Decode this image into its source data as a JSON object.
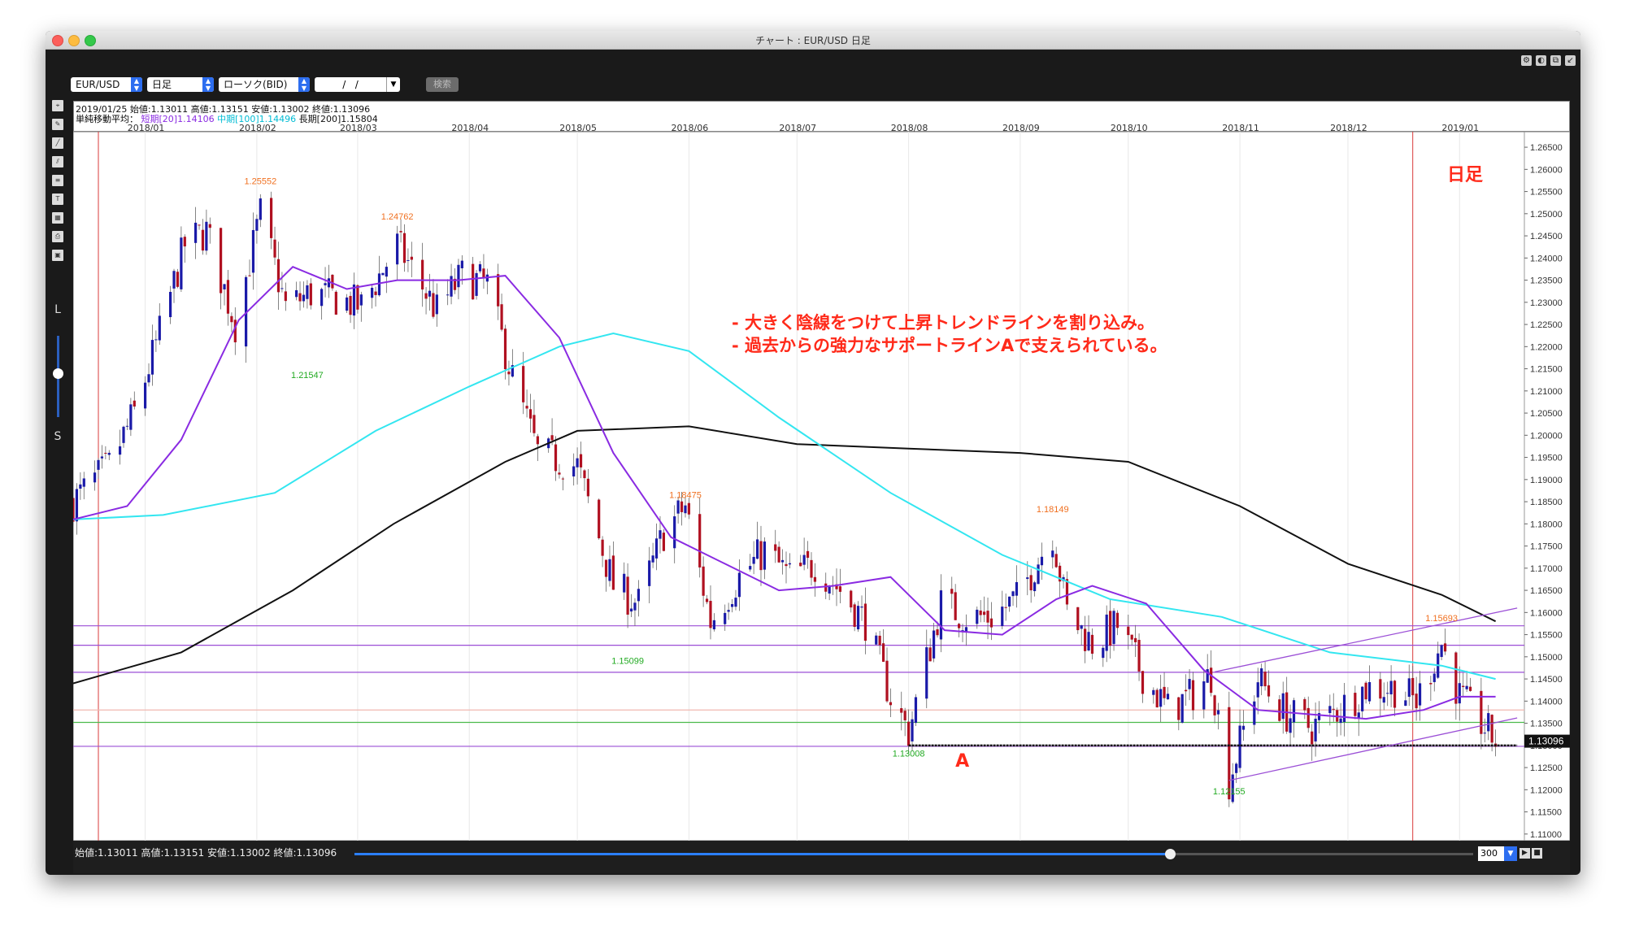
{
  "window": {
    "title": "チャート : EUR/USD 日足"
  },
  "toolbar": {
    "pair": "EUR/USD",
    "period": "日足",
    "candle_type": "ローソク(BID)",
    "date_value": "/   /",
    "search_label": "検索",
    "icons": [
      "gear-icon",
      "palette-icon",
      "popout-icon",
      "collapse-icon"
    ]
  },
  "left_tools": {
    "icons": [
      "cursor-icon",
      "pen-icon",
      "trendline-icon",
      "channel-icon",
      "fibonacci-icon",
      "text-icon",
      "grid-icon",
      "print-icon",
      "save-icon"
    ],
    "slider_top_label": "L",
    "slider_bottom_label": "S"
  },
  "info": {
    "ohlc_line": "2019/01/25 始値:1.13011 高値:1.13151 安値:1.13002 終値:1.13096",
    "ma_label": "単純移動平均：",
    "ma_short": "短期[20]1.14106",
    "ma_mid": "中期[100]1.14496",
    "ma_long": "長期[200]1.15804"
  },
  "status": {
    "ohlc_text": "始値:1.13011 高値:1.13151 安値:1.13002 終値:1.13096",
    "bars_value": "300",
    "zoom_level": 0.73
  },
  "colors": {
    "up": "#1a1aa8",
    "down": "#b01020",
    "ma_short": "#8a2be2",
    "ma_mid": "#33e6f0",
    "ma_long": "#111111",
    "annotation": "#ff2a1a"
  },
  "chart_data": {
    "type": "candlestick",
    "period_label": "日足",
    "x_axis_labels": [
      "2018/01",
      "2018/02",
      "2018/03",
      "2018/04",
      "2018/05",
      "2018/06",
      "2018/07",
      "2018/08",
      "2018/09",
      "2018/10",
      "2018/11",
      "2018/12",
      "2019/01"
    ],
    "y_ticks": [
      "1.26500",
      "1.26000",
      "1.25500",
      "1.25000",
      "1.24500",
      "1.24000",
      "1.23500",
      "1.23000",
      "1.22500",
      "1.22000",
      "1.21500",
      "1.21000",
      "1.20500",
      "1.20000",
      "1.19500",
      "1.19000",
      "1.18500",
      "1.18000",
      "1.17500",
      "1.17000",
      "1.16500",
      "1.16000",
      "1.15500",
      "1.15000",
      "1.14500",
      "1.14000",
      "1.13500",
      "1.13000",
      "1.12500",
      "1.12000",
      "1.11500",
      "1.11000"
    ],
    "ylim": [
      1.1085,
      1.2685
    ],
    "current_price": "1.13096",
    "close_path": [
      {
        "d": "2017-12-26",
        "v": 1.185
      },
      {
        "d": "2018-01-05",
        "v": 1.193
      },
      {
        "d": "2018-01-12",
        "v": 1.205
      },
      {
        "d": "2018-01-19",
        "v": 1.223
      },
      {
        "d": "2018-01-26",
        "v": 1.243
      },
      {
        "d": "2018-02-01",
        "v": 1.246
      },
      {
        "d": "2018-02-09",
        "v": 1.225
      },
      {
        "d": "2018-02-16",
        "v": 1.25
      },
      {
        "d": "2018-02-23",
        "v": 1.229
      },
      {
        "d": "2018-03-02",
        "v": 1.232
      },
      {
        "d": "2018-03-09",
        "v": 1.231
      },
      {
        "d": "2018-03-16",
        "v": 1.229
      },
      {
        "d": "2018-03-26",
        "v": 1.243
      },
      {
        "d": "2018-04-06",
        "v": 1.228
      },
      {
        "d": "2018-04-13",
        "v": 1.236
      },
      {
        "d": "2018-04-20",
        "v": 1.234
      },
      {
        "d": "2018-04-27",
        "v": 1.213
      },
      {
        "d": "2018-05-04",
        "v": 1.196
      },
      {
        "d": "2018-05-15",
        "v": 1.193
      },
      {
        "d": "2018-05-25",
        "v": 1.166
      },
      {
        "d": "2018-06-01",
        "v": 1.162
      },
      {
        "d": "2018-06-08",
        "v": 1.178
      },
      {
        "d": "2018-06-14",
        "v": 1.184
      },
      {
        "d": "2018-06-21",
        "v": 1.158
      },
      {
        "d": "2018-06-29",
        "v": 1.168
      },
      {
        "d": "2018-07-06",
        "v": 1.174
      },
      {
        "d": "2018-07-13",
        "v": 1.168
      },
      {
        "d": "2018-07-20",
        "v": 1.171
      },
      {
        "d": "2018-07-27",
        "v": 1.165
      },
      {
        "d": "2018-08-03",
        "v": 1.158
      },
      {
        "d": "2018-08-10",
        "v": 1.141
      },
      {
        "d": "2018-08-15",
        "v": 1.133
      },
      {
        "d": "2018-08-24",
        "v": 1.162
      },
      {
        "d": "2018-08-31",
        "v": 1.159
      },
      {
        "d": "2018-09-07",
        "v": 1.159
      },
      {
        "d": "2018-09-14",
        "v": 1.163
      },
      {
        "d": "2018-09-24",
        "v": 1.178
      },
      {
        "d": "2018-09-28",
        "v": 1.16
      },
      {
        "d": "2018-10-05",
        "v": 1.153
      },
      {
        "d": "2018-10-12",
        "v": 1.157
      },
      {
        "d": "2018-10-19",
        "v": 1.146
      },
      {
        "d": "2018-10-26",
        "v": 1.138
      },
      {
        "d": "2018-11-01",
        "v": 1.141
      },
      {
        "d": "2018-11-07",
        "v": 1.146
      },
      {
        "d": "2018-11-12",
        "v": 1.122
      },
      {
        "d": "2018-11-20",
        "v": 1.145
      },
      {
        "d": "2018-11-28",
        "v": 1.137
      },
      {
        "d": "2018-12-05",
        "v": 1.134
      },
      {
        "d": "2018-12-12",
        "v": 1.138
      },
      {
        "d": "2018-12-20",
        "v": 1.143
      },
      {
        "d": "2018-12-28",
        "v": 1.143
      },
      {
        "d": "2019-01-03",
        "v": 1.14
      },
      {
        "d": "2019-01-10",
        "v": 1.153
      },
      {
        "d": "2019-01-15",
        "v": 1.141
      },
      {
        "d": "2019-01-20",
        "v": 1.136
      },
      {
        "d": "2019-01-25",
        "v": 1.131
      }
    ],
    "ma_short_path": [
      {
        "d": "2017-12-26",
        "v": 1.181
      },
      {
        "d": "2018-01-10",
        "v": 1.184
      },
      {
        "d": "2018-01-25",
        "v": 1.199
      },
      {
        "d": "2018-02-10",
        "v": 1.226
      },
      {
        "d": "2018-02-25",
        "v": 1.238
      },
      {
        "d": "2018-03-12",
        "v": 1.233
      },
      {
        "d": "2018-03-26",
        "v": 1.235
      },
      {
        "d": "2018-04-12",
        "v": 1.235
      },
      {
        "d": "2018-04-25",
        "v": 1.236
      },
      {
        "d": "2018-05-10",
        "v": 1.222
      },
      {
        "d": "2018-05-25",
        "v": 1.196
      },
      {
        "d": "2018-06-10",
        "v": 1.177
      },
      {
        "d": "2018-06-25",
        "v": 1.171
      },
      {
        "d": "2018-07-10",
        "v": 1.165
      },
      {
        "d": "2018-07-25",
        "v": 1.166
      },
      {
        "d": "2018-08-10",
        "v": 1.168
      },
      {
        "d": "2018-08-25",
        "v": 1.156
      },
      {
        "d": "2018-09-10",
        "v": 1.155
      },
      {
        "d": "2018-09-25",
        "v": 1.163
      },
      {
        "d": "2018-10-05",
        "v": 1.166
      },
      {
        "d": "2018-10-20",
        "v": 1.162
      },
      {
        "d": "2018-11-05",
        "v": 1.147
      },
      {
        "d": "2018-11-20",
        "v": 1.138
      },
      {
        "d": "2018-12-05",
        "v": 1.137
      },
      {
        "d": "2018-12-20",
        "v": 1.136
      },
      {
        "d": "2019-01-05",
        "v": 1.138
      },
      {
        "d": "2019-01-15",
        "v": 1.141
      },
      {
        "d": "2019-01-25",
        "v": 1.141
      }
    ],
    "ma_mid_path": [
      {
        "d": "2017-12-26",
        "v": 1.181
      },
      {
        "d": "2018-01-20",
        "v": 1.182
      },
      {
        "d": "2018-02-20",
        "v": 1.187
      },
      {
        "d": "2018-03-20",
        "v": 1.201
      },
      {
        "d": "2018-04-15",
        "v": 1.211
      },
      {
        "d": "2018-05-10",
        "v": 1.22
      },
      {
        "d": "2018-05-25",
        "v": 1.223
      },
      {
        "d": "2018-06-15",
        "v": 1.219
      },
      {
        "d": "2018-07-10",
        "v": 1.204
      },
      {
        "d": "2018-08-10",
        "v": 1.187
      },
      {
        "d": "2018-09-10",
        "v": 1.173
      },
      {
        "d": "2018-10-10",
        "v": 1.163
      },
      {
        "d": "2018-11-10",
        "v": 1.159
      },
      {
        "d": "2018-12-10",
        "v": 1.151
      },
      {
        "d": "2019-01-10",
        "v": 1.148
      },
      {
        "d": "2019-01-25",
        "v": 1.145
      }
    ],
    "ma_long_path": [
      {
        "d": "2017-12-26",
        "v": 1.144
      },
      {
        "d": "2018-01-25",
        "v": 1.151
      },
      {
        "d": "2018-02-25",
        "v": 1.165
      },
      {
        "d": "2018-03-25",
        "v": 1.18
      },
      {
        "d": "2018-04-25",
        "v": 1.194
      },
      {
        "d": "2018-05-15",
        "v": 1.201
      },
      {
        "d": "2018-06-15",
        "v": 1.202
      },
      {
        "d": "2018-07-15",
        "v": 1.198
      },
      {
        "d": "2018-08-15",
        "v": 1.197
      },
      {
        "d": "2018-09-15",
        "v": 1.196
      },
      {
        "d": "2018-10-15",
        "v": 1.194
      },
      {
        "d": "2018-11-15",
        "v": 1.184
      },
      {
        "d": "2018-12-15",
        "v": 1.171
      },
      {
        "d": "2019-01-10",
        "v": 1.164
      },
      {
        "d": "2019-01-25",
        "v": 1.158
      }
    ],
    "horizontal_lines": [
      {
        "v": 1.157,
        "color": "#9b4fd6"
      },
      {
        "v": 1.1526,
        "color": "#9b4fd6"
      },
      {
        "v": 1.1465,
        "color": "#9b4fd6"
      },
      {
        "v": 1.138,
        "color": "#f0b8b0"
      },
      {
        "v": 1.1352,
        "color": "#4cbb4c"
      },
      {
        "v": 1.1298,
        "color": "#9b4fd6"
      }
    ],
    "vertical_markers": [
      "2018-01-02",
      "2019-01-02"
    ],
    "support_line": {
      "from": "2018-08-15",
      "to": "2019-01-31",
      "v": 1.13
    },
    "trend_lines": [
      {
        "from": {
          "d": "2018-11-08",
          "v": 1.1466
        },
        "to": {
          "d": "2019-01-31",
          "v": 1.161
        }
      },
      {
        "from": {
          "d": "2018-11-12",
          "v": 1.1221
        },
        "to": {
          "d": "2019-01-31",
          "v": 1.1362
        }
      }
    ],
    "price_labels": [
      {
        "text": "1.25552",
        "d": "2018-02-16",
        "v": 1.25552,
        "pos": "above",
        "color": "#f07020"
      },
      {
        "text": "1.24762",
        "d": "2018-03-26",
        "v": 1.24762,
        "pos": "above",
        "color": "#f07020"
      },
      {
        "text": "1.21547",
        "d": "2018-03-01",
        "v": 1.21547,
        "pos": "below",
        "color": "#22aa22"
      },
      {
        "text": "1.18475",
        "d": "2018-06-14",
        "v": 1.18475,
        "pos": "above",
        "color": "#f07020"
      },
      {
        "text": "1.15099",
        "d": "2018-05-29",
        "v": 1.15099,
        "pos": "below",
        "color": "#22aa22"
      },
      {
        "text": "1.18149",
        "d": "2018-09-24",
        "v": 1.18149,
        "pos": "above",
        "color": "#f07020"
      },
      {
        "text": "1.13008",
        "d": "2018-08-15",
        "v": 1.13008,
        "pos": "below",
        "color": "#22aa22"
      },
      {
        "text": "1.12155",
        "d": "2018-11-12",
        "v": 1.12155,
        "pos": "below",
        "color": "#22aa22"
      },
      {
        "text": "1.15693",
        "d": "2019-01-10",
        "v": 1.15693,
        "pos": "above",
        "color": "#f07020"
      }
    ],
    "annotations": {
      "period_badge": "日足",
      "line1": "- 大きく陰線をつけて上昇トレンドラインを割り込み。",
      "line2": "- 過去からの強力なサポートラインAで支えられている。",
      "support_label": "A"
    }
  }
}
